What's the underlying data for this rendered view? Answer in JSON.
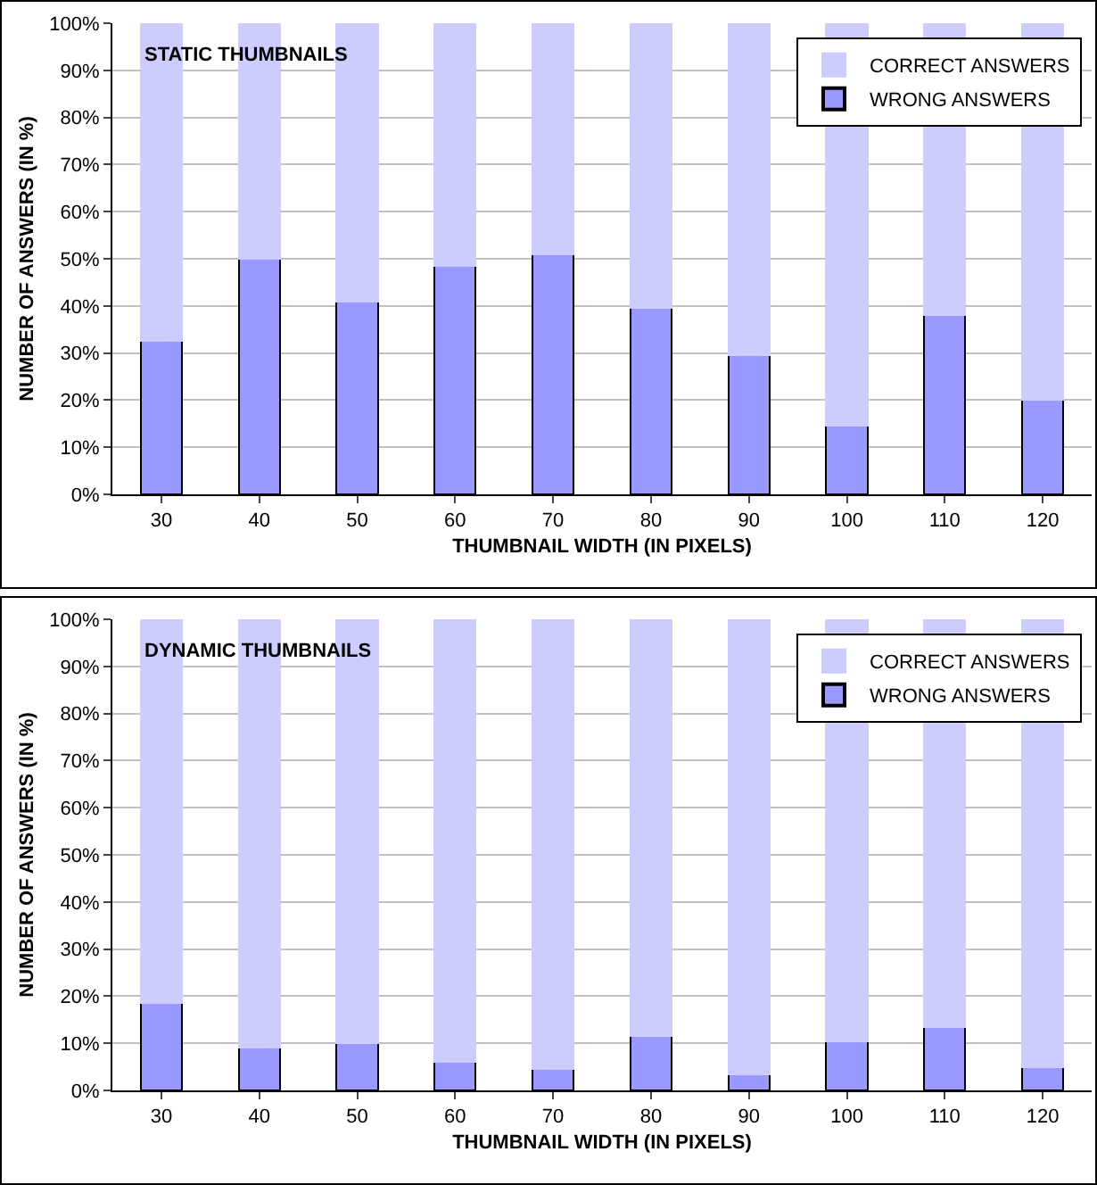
{
  "chart_data": [
    {
      "type": "bar",
      "title": "STATIC THUMBNAILS",
      "xlabel": "THUMBNAIL WIDTH (IN PIXELS)",
      "ylabel": "NUMBER OF ANSWERS (IN %)",
      "categories": [
        "30",
        "40",
        "50",
        "60",
        "70",
        "80",
        "90",
        "100",
        "110",
        "120"
      ],
      "stacked": true,
      "series": [
        {
          "name": "WRONG ANSWERS",
          "color": "#9999ff",
          "values": [
            32.5,
            50,
            41,
            48.5,
            51,
            39.5,
            29.5,
            14.5,
            38,
            20
          ]
        },
        {
          "name": "CORRECT ANSWERS",
          "color": "#ccccff",
          "values": [
            67.5,
            50,
            59,
            51.5,
            49,
            60.5,
            70.5,
            85.5,
            62,
            80
          ]
        }
      ],
      "ylim": [
        0,
        100
      ],
      "yticks": [
        {
          "value": 0,
          "label": "0%"
        },
        {
          "value": 10,
          "label": "10%"
        },
        {
          "value": 20,
          "label": "20%"
        },
        {
          "value": 30,
          "label": "30%"
        },
        {
          "value": 40,
          "label": "40%"
        },
        {
          "value": 50,
          "label": "50%"
        },
        {
          "value": 60,
          "label": "60%"
        },
        {
          "value": 70,
          "label": "70%"
        },
        {
          "value": 80,
          "label": "80%"
        },
        {
          "value": 90,
          "label": "90%"
        },
        {
          "value": 100,
          "label": "100%"
        }
      ],
      "grid": "y",
      "legend": "top right"
    },
    {
      "type": "bar",
      "title": "DYNAMIC THUMBNAILS",
      "xlabel": "THUMBNAIL WIDTH (IN PIXELS)",
      "ylabel": "NUMBER OF ANSWERS (IN %)",
      "categories": [
        "30",
        "40",
        "50",
        "60",
        "70",
        "80",
        "90",
        "100",
        "110",
        "120"
      ],
      "stacked": true,
      "series": [
        {
          "name": "WRONG ANSWERS",
          "color": "#9999ff",
          "values": [
            18.5,
            9,
            10,
            6,
            4.5,
            11.5,
            3.5,
            10.5,
            13.5,
            5
          ]
        },
        {
          "name": "CORRECT ANSWERS",
          "color": "#ccccff",
          "values": [
            81.5,
            91,
            90,
            94,
            95.5,
            88.5,
            96.5,
            89.5,
            86.5,
            95
          ]
        }
      ],
      "ylim": [
        0,
        100
      ],
      "yticks": [
        {
          "value": 0,
          "label": "0%"
        },
        {
          "value": 10,
          "label": "10%"
        },
        {
          "value": 20,
          "label": "20%"
        },
        {
          "value": 30,
          "label": "30%"
        },
        {
          "value": 40,
          "label": "40%"
        },
        {
          "value": 50,
          "label": "50%"
        },
        {
          "value": 60,
          "label": "60%"
        },
        {
          "value": 70,
          "label": "70%"
        },
        {
          "value": 80,
          "label": "80%"
        },
        {
          "value": 90,
          "label": "90%"
        },
        {
          "value": 100,
          "label": "100%"
        }
      ],
      "grid": "y",
      "legend": "top right"
    }
  ]
}
